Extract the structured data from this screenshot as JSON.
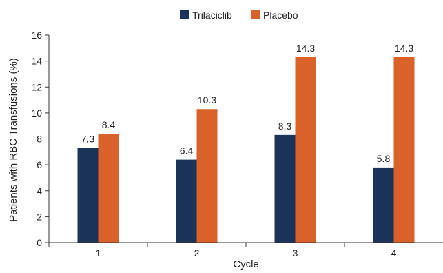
{
  "chart_data": {
    "type": "bar",
    "title": "",
    "xlabel": "Cycle",
    "ylabel": "Patients with RBC Transfusions (%)",
    "categories": [
      "1",
      "2",
      "3",
      "4"
    ],
    "series": [
      {
        "name": "Trilaciclib",
        "color": "#1c3359",
        "values": [
          7.3,
          6.4,
          8.3,
          5.8
        ],
        "labels": [
          "7.3",
          "6.4",
          "8.3",
          "5.8"
        ]
      },
      {
        "name": "Placebo",
        "color": "#d9622b",
        "values": [
          8.4,
          10.3,
          14.3,
          14.3
        ],
        "labels": [
          "8.4",
          "10.3",
          "14.3",
          "14.3"
        ]
      }
    ],
    "ylim": [
      0,
      16
    ],
    "yticks": [
      0,
      2,
      4,
      6,
      8,
      10,
      12,
      14,
      16
    ],
    "grid": false,
    "legend_position": "top-center"
  }
}
